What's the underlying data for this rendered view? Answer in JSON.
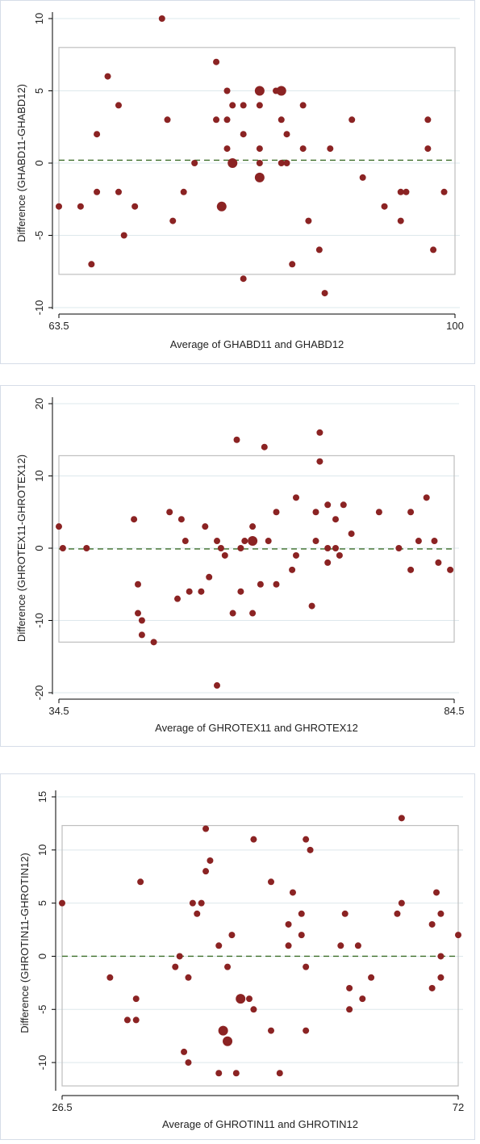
{
  "chart_data": [
    {
      "type": "scatter",
      "xlabel": "Average of GHABD11 and GHABD12",
      "ylabel": "Difference (GHABD11-GHABD12)",
      "xlim": [
        63.5,
        100
      ],
      "ylim": [
        -10,
        10
      ],
      "x_ticks": [
        "63.5",
        "100"
      ],
      "y_ticks": [
        "10",
        "5",
        "0",
        "-5",
        "-10"
      ],
      "y_tick_values": [
        10,
        5,
        0,
        -5,
        -10
      ],
      "mean_difference": 0.2,
      "limits_of_agreement": [
        -7.7,
        8.0
      ],
      "grid": "horizontal",
      "points": [
        [
          63.5,
          -3
        ],
        [
          65.5,
          -3
        ],
        [
          66.5,
          -7
        ],
        [
          67,
          2
        ],
        [
          67,
          -2
        ],
        [
          68,
          6
        ],
        [
          69,
          4
        ],
        [
          69,
          -2
        ],
        [
          69.5,
          -5
        ],
        [
          70.5,
          -3
        ],
        [
          73,
          10
        ],
        [
          73.5,
          3
        ],
        [
          74,
          -4
        ],
        [
          75,
          -2
        ],
        [
          76,
          0
        ],
        [
          78,
          7
        ],
        [
          78,
          3
        ],
        [
          79,
          5
        ],
        [
          79,
          3
        ],
        [
          79,
          1
        ],
        [
          79.5,
          4
        ],
        [
          80.5,
          4
        ],
        [
          80.5,
          2
        ],
        [
          80.5,
          -8
        ],
        [
          82,
          4
        ],
        [
          82,
          0
        ],
        [
          82,
          -1
        ],
        [
          82,
          5
        ],
        [
          82,
          1
        ],
        [
          82,
          -1
        ],
        [
          83.5,
          5
        ],
        [
          84,
          0
        ],
        [
          84,
          3
        ],
        [
          84,
          5
        ],
        [
          84.5,
          2
        ],
        [
          84.5,
          0
        ],
        [
          85,
          -7
        ],
        [
          86,
          1
        ],
        [
          86,
          4
        ],
        [
          86.5,
          -4
        ],
        [
          87.5,
          -6
        ],
        [
          88,
          -9
        ],
        [
          88.5,
          1
        ],
        [
          90.5,
          3
        ],
        [
          91.5,
          -1
        ],
        [
          93.5,
          -3
        ],
        [
          95,
          -2
        ],
        [
          95,
          -4
        ],
        [
          95.5,
          -2
        ],
        [
          97.5,
          3
        ],
        [
          97.5,
          1
        ],
        [
          98,
          -6
        ],
        [
          99,
          -2
        ]
      ],
      "big_points": [
        [
          82,
          5
        ],
        [
          84,
          5
        ],
        [
          82,
          -1
        ],
        [
          78.5,
          -3
        ],
        [
          79.5,
          0
        ]
      ]
    },
    {
      "type": "scatter",
      "xlabel": "Average of GHROTEX11 and GHROTEX12",
      "ylabel": "Difference (GHROTEX11-GHROTEX12)",
      "xlim": [
        34.5,
        84.5
      ],
      "ylim": [
        -20,
        20
      ],
      "x_ticks": [
        "34.5",
        "84.5"
      ],
      "y_ticks": [
        "20",
        "10",
        "0",
        "-10",
        "-20"
      ],
      "y_tick_values": [
        20,
        10,
        0,
        -10,
        -20
      ],
      "mean_difference": -0.1,
      "limits_of_agreement": [
        -13,
        12.8
      ],
      "grid": "horizontal",
      "points": [
        [
          34.5,
          3
        ],
        [
          35,
          0
        ],
        [
          38,
          0
        ],
        [
          44,
          4
        ],
        [
          44.5,
          -5
        ],
        [
          44.5,
          -9
        ],
        [
          45,
          -10
        ],
        [
          45,
          -12
        ],
        [
          46.5,
          -13
        ],
        [
          48.5,
          5
        ],
        [
          49.5,
          -7
        ],
        [
          50,
          4
        ],
        [
          50.5,
          1
        ],
        [
          51,
          -6
        ],
        [
          52.5,
          -6
        ],
        [
          53,
          3
        ],
        [
          53.5,
          -4
        ],
        [
          54.5,
          1
        ],
        [
          55,
          0
        ],
        [
          55.5,
          -1
        ],
        [
          54.5,
          -19
        ],
        [
          56.5,
          -9
        ],
        [
          57,
          15
        ],
        [
          57.5,
          0
        ],
        [
          57.5,
          -6
        ],
        [
          58,
          1
        ],
        [
          59,
          3
        ],
        [
          59,
          -9
        ],
        [
          59,
          1
        ],
        [
          60,
          -5
        ],
        [
          60.5,
          14
        ],
        [
          61,
          1
        ],
        [
          62,
          -5
        ],
        [
          62,
          5
        ],
        [
          64,
          -3
        ],
        [
          64.5,
          7
        ],
        [
          64.5,
          -1
        ],
        [
          66.5,
          -8
        ],
        [
          67,
          5
        ],
        [
          67,
          1
        ],
        [
          67.5,
          16
        ],
        [
          67.5,
          12
        ],
        [
          68.5,
          6
        ],
        [
          68.5,
          0
        ],
        [
          68.5,
          -2
        ],
        [
          69.5,
          4
        ],
        [
          69.5,
          0
        ],
        [
          70,
          -1
        ],
        [
          70.5,
          6
        ],
        [
          71.5,
          2
        ],
        [
          75,
          5
        ],
        [
          77.5,
          0
        ],
        [
          79,
          5
        ],
        [
          79,
          -3
        ],
        [
          80,
          1
        ],
        [
          81,
          7
        ],
        [
          82,
          1
        ],
        [
          82.5,
          -2
        ],
        [
          84,
          -3
        ]
      ],
      "big_points": [
        [
          59,
          1
        ]
      ]
    },
    {
      "type": "scatter",
      "xlabel": "Average of GHROTIN11 and GHROTIN12",
      "ylabel": "Difference (GHROTIN11-GHROTIN12)",
      "xlim": [
        26.5,
        72
      ],
      "ylim": [
        -12.5,
        15
      ],
      "x_ticks": [
        "26.5",
        "72"
      ],
      "y_ticks": [
        "15",
        "10",
        "5",
        "0",
        "-5",
        "-10"
      ],
      "y_tick_values": [
        15,
        10,
        5,
        0,
        -5,
        -10
      ],
      "mean_difference": 0,
      "limits_of_agreement": [
        -12.2,
        12.3
      ],
      "grid": "horizontal",
      "points": [
        [
          26.5,
          5
        ],
        [
          32,
          -2
        ],
        [
          34,
          -6
        ],
        [
          35,
          -4
        ],
        [
          35,
          -6
        ],
        [
          35.5,
          7
        ],
        [
          39.5,
          -1
        ],
        [
          40,
          0
        ],
        [
          40.5,
          -9
        ],
        [
          41,
          -2
        ],
        [
          41,
          -10
        ],
        [
          41.5,
          5
        ],
        [
          42,
          4
        ],
        [
          42.5,
          5
        ],
        [
          43,
          8
        ],
        [
          43,
          12
        ],
        [
          43.5,
          9
        ],
        [
          44.5,
          1
        ],
        [
          44.5,
          -11
        ],
        [
          45.5,
          -1
        ],
        [
          46,
          2
        ],
        [
          46.5,
          -11
        ],
        [
          48,
          -4
        ],
        [
          48.5,
          11
        ],
        [
          48.5,
          -5
        ],
        [
          50.5,
          7
        ],
        [
          50.5,
          -7
        ],
        [
          51.5,
          -11
        ],
        [
          52.5,
          3
        ],
        [
          52.5,
          1
        ],
        [
          53,
          6
        ],
        [
          54,
          4
        ],
        [
          54,
          2
        ],
        [
          54.5,
          11
        ],
        [
          54.5,
          -1
        ],
        [
          54.5,
          -7
        ],
        [
          55,
          10
        ],
        [
          58.5,
          1
        ],
        [
          59,
          4
        ],
        [
          59.5,
          -3
        ],
        [
          59.5,
          -5
        ],
        [
          60.5,
          1
        ],
        [
          61,
          -4
        ],
        [
          62,
          -2
        ],
        [
          65,
          4
        ],
        [
          65.5,
          5
        ],
        [
          65.5,
          13
        ],
        [
          69,
          -3
        ],
        [
          69,
          3
        ],
        [
          69.5,
          6
        ],
        [
          70,
          4
        ],
        [
          70,
          0
        ],
        [
          70,
          -2
        ],
        [
          72,
          2
        ]
      ],
      "big_points": [
        [
          45,
          -7
        ],
        [
          45.5,
          -8
        ],
        [
          47,
          -4
        ]
      ]
    }
  ]
}
